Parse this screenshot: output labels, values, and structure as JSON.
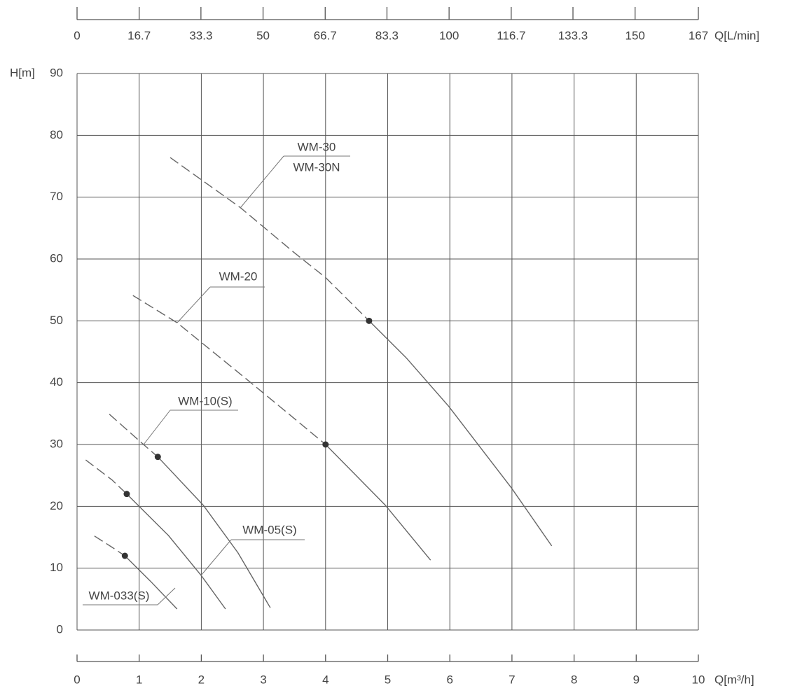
{
  "chart_data": {
    "type": "line",
    "y_label": "H[m]",
    "x_label": "Q[m³/h]",
    "x2_label": "Q[L/min]",
    "xlim": [
      0,
      10
    ],
    "xticks": [
      0,
      1,
      2,
      3,
      4,
      5,
      6,
      7,
      8,
      9,
      10
    ],
    "x2lim": [
      0,
      167
    ],
    "x2ticks": [
      0,
      16.7,
      33.3,
      50,
      66.7,
      83.3,
      100,
      116.7,
      133.3,
      150,
      167
    ],
    "ylim": [
      0,
      90
    ],
    "yticks": [
      0,
      10,
      20,
      30,
      40,
      50,
      60,
      70,
      80,
      90
    ],
    "grid": true,
    "color": "#555555",
    "series": [
      {
        "labels": [
          "WM-30",
          "WM-30N"
        ],
        "dashed": {
          "x": [
            1.5,
            2.63,
            3.5,
            4.0,
            4.7
          ],
          "y": [
            76.4,
            68.3,
            61,
            57,
            50
          ]
        },
        "solid": {
          "x": [
            4.7,
            5.3,
            5.98,
            6.99,
            7.64
          ],
          "y": [
            50,
            44,
            36.2,
            23,
            13.6
          ]
        },
        "rated": {
          "x": 4.7,
          "y": 50
        }
      },
      {
        "labels": [
          "WM-20"
        ],
        "dashed": {
          "x": [
            0.9,
            1.61,
            2.7,
            3.4,
            4.0
          ],
          "y": [
            54.1,
            49.7,
            40.8,
            35,
            30
          ]
        },
        "solid": {
          "x": [
            4.0,
            4.96,
            5.69
          ],
          "y": [
            30,
            20.2,
            11.3
          ]
        },
        "rated": {
          "x": 4.0,
          "y": 30
        }
      },
      {
        "labels": [
          "WM-10(S)"
        ],
        "dashed": {
          "x": [
            0.52,
            1.07,
            1.3
          ],
          "y": [
            34.9,
            30,
            28
          ]
        },
        "solid": {
          "x": [
            1.3,
            2.03,
            2.59,
            3.11
          ],
          "y": [
            28,
            20.2,
            12.5,
            3.6
          ]
        },
        "rated": {
          "x": 1.3,
          "y": 28
        }
      },
      {
        "labels": [
          "WM-05(S)"
        ],
        "dashed": {
          "x": [
            0.14,
            0.56,
            0.8
          ],
          "y": [
            27.5,
            24.3,
            22
          ]
        },
        "solid": {
          "x": [
            0.8,
            1.47,
            2.0,
            2.39
          ],
          "y": [
            22,
            15.3,
            8.8,
            3.4
          ]
        },
        "rated": {
          "x": 0.8,
          "y": 22
        }
      },
      {
        "labels": [
          "WM-033(S)"
        ],
        "dashed": {
          "x": [
            0.28,
            0.56,
            0.77
          ],
          "y": [
            15.2,
            13.4,
            12
          ]
        },
        "solid": {
          "x": [
            0.77,
            1.18,
            1.61
          ],
          "y": [
            12,
            7.9,
            3.4
          ]
        },
        "rated": {
          "x": 0.77,
          "y": 12
        }
      }
    ]
  }
}
